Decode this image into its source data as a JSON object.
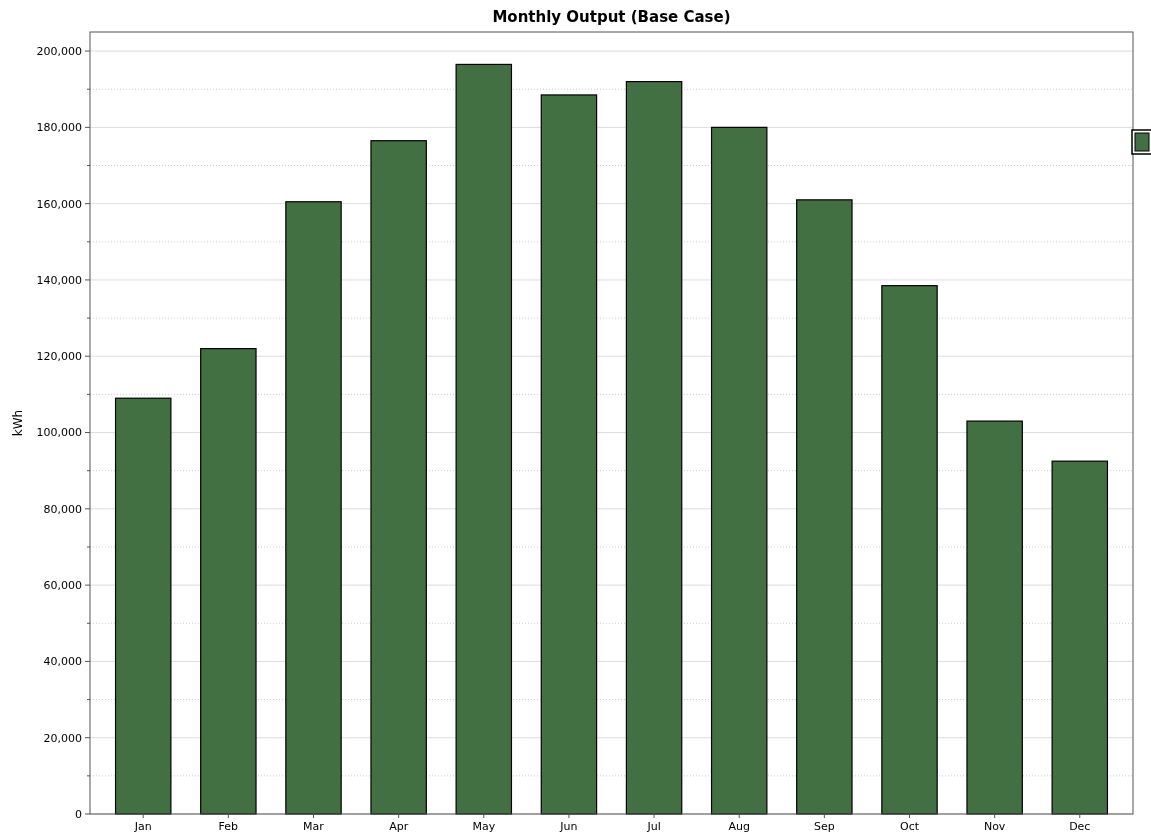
{
  "chart_data": {
    "type": "bar",
    "title": "Monthly Output (Base Case)",
    "ylabel": "kWh",
    "categories": [
      "Jan",
      "Feb",
      "Mar",
      "Apr",
      "May",
      "Jun",
      "Jul",
      "Aug",
      "Sep",
      "Oct",
      "Nov",
      "Dec"
    ],
    "series": [
      {
        "color": "#437043",
        "values": [
          109000,
          122000,
          160500,
          176500,
          196500,
          188500,
          192000,
          180000,
          161000,
          138500,
          103000,
          92500
        ]
      }
    ],
    "ylim": [
      0,
      205000
    ],
    "yticks": [
      {
        "value": 0,
        "label": "0"
      },
      {
        "value": 20000,
        "label": "20,000"
      },
      {
        "value": 40000,
        "label": "40,000"
      },
      {
        "value": 60000,
        "label": "60,000"
      },
      {
        "value": 80000,
        "label": "80,000"
      },
      {
        "value": 100000,
        "label": "100,000"
      },
      {
        "value": 120000,
        "label": "120,000"
      },
      {
        "value": 140000,
        "label": "140,000"
      },
      {
        "value": 160000,
        "label": "160,000"
      },
      {
        "value": 180000,
        "label": "180,000"
      },
      {
        "value": 200000,
        "label": "200,000"
      }
    ],
    "grid": "y"
  }
}
